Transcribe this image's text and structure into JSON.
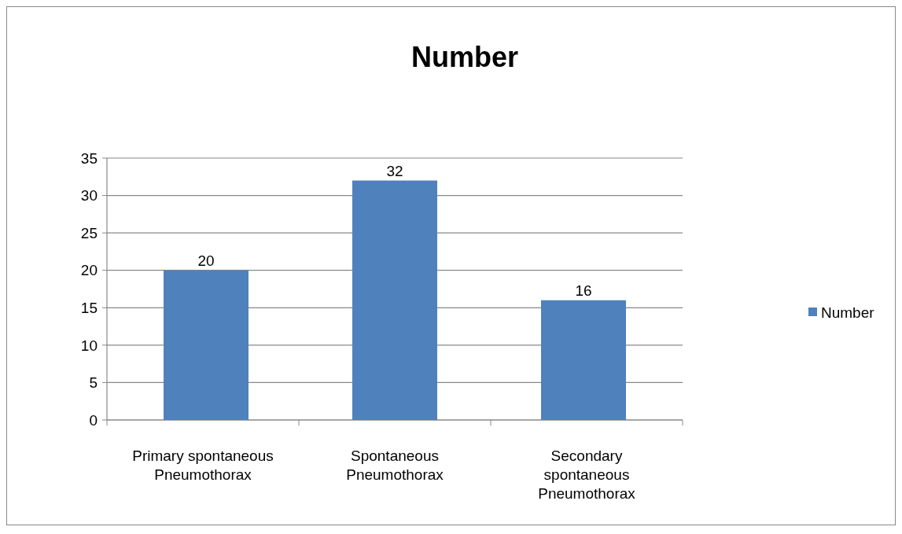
{
  "chart_data": {
    "type": "bar",
    "title": "Number",
    "categories": [
      "Primary spontaneous Pneumothorax",
      "Spontaneous Pneumothorax",
      "Secondary spontaneous Pneumothorax"
    ],
    "series": [
      {
        "name": "Number",
        "color": "#4f81bd",
        "values": [
          20,
          32,
          16
        ]
      }
    ],
    "ylim": [
      0,
      35
    ],
    "yticks": [
      0,
      5,
      10,
      15,
      20,
      25,
      30,
      35
    ],
    "grid": "y",
    "legend": "right",
    "data_labels": true
  }
}
